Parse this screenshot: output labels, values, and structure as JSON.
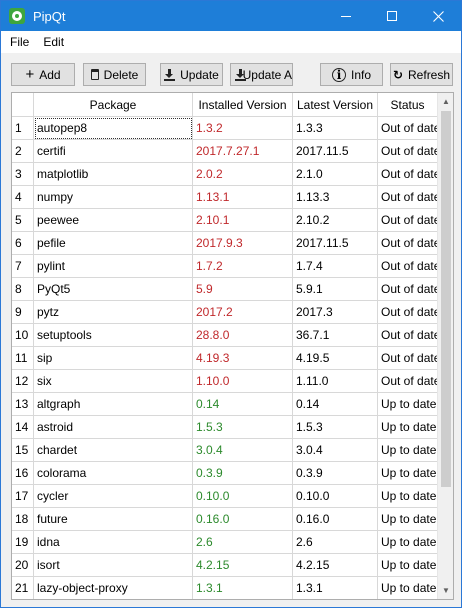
{
  "window": {
    "title": "PipQt"
  },
  "menu": {
    "file": "File",
    "edit": "Edit"
  },
  "toolbar": {
    "add": "Add",
    "delete": "Delete",
    "update": "Update",
    "update_all": "Update A",
    "info": "Info",
    "refresh": "Refresh"
  },
  "colors": {
    "outdated": "#c0282b",
    "uptodate": "#2c8a2c",
    "titlebar": "#1e7ed8"
  },
  "table": {
    "headers": {
      "number": "",
      "package": "Package",
      "installed": "Installed Version",
      "latest": "Latest Version",
      "status": "Status"
    },
    "rows": [
      {
        "n": "1",
        "package": "autopep8",
        "installed": "1.3.2",
        "latest": "1.3.3",
        "status": "Out of date"
      },
      {
        "n": "2",
        "package": "certifi",
        "installed": "2017.7.27.1",
        "latest": "2017.11.5",
        "status": "Out of date"
      },
      {
        "n": "3",
        "package": "matplotlib",
        "installed": "2.0.2",
        "latest": "2.1.0",
        "status": "Out of date"
      },
      {
        "n": "4",
        "package": "numpy",
        "installed": "1.13.1",
        "latest": "1.13.3",
        "status": "Out of date"
      },
      {
        "n": "5",
        "package": "peewee",
        "installed": "2.10.1",
        "latest": "2.10.2",
        "status": "Out of date"
      },
      {
        "n": "6",
        "package": "pefile",
        "installed": "2017.9.3",
        "latest": "2017.11.5",
        "status": "Out of date"
      },
      {
        "n": "7",
        "package": "pylint",
        "installed": "1.7.2",
        "latest": "1.7.4",
        "status": "Out of date"
      },
      {
        "n": "8",
        "package": "PyQt5",
        "installed": "5.9",
        "latest": "5.9.1",
        "status": "Out of date"
      },
      {
        "n": "9",
        "package": "pytz",
        "installed": "2017.2",
        "latest": "2017.3",
        "status": "Out of date"
      },
      {
        "n": "10",
        "package": "setuptools",
        "installed": "28.8.0",
        "latest": "36.7.1",
        "status": "Out of date"
      },
      {
        "n": "11",
        "package": "sip",
        "installed": "4.19.3",
        "latest": "4.19.5",
        "status": "Out of date"
      },
      {
        "n": "12",
        "package": "six",
        "installed": "1.10.0",
        "latest": "1.11.0",
        "status": "Out of date"
      },
      {
        "n": "13",
        "package": "altgraph",
        "installed": "0.14",
        "latest": "0.14",
        "status": "Up to date"
      },
      {
        "n": "14",
        "package": "astroid",
        "installed": "1.5.3",
        "latest": "1.5.3",
        "status": "Up to date"
      },
      {
        "n": "15",
        "package": "chardet",
        "installed": "3.0.4",
        "latest": "3.0.4",
        "status": "Up to date"
      },
      {
        "n": "16",
        "package": "colorama",
        "installed": "0.3.9",
        "latest": "0.3.9",
        "status": "Up to date"
      },
      {
        "n": "17",
        "package": "cycler",
        "installed": "0.10.0",
        "latest": "0.10.0",
        "status": "Up to date"
      },
      {
        "n": "18",
        "package": "future",
        "installed": "0.16.0",
        "latest": "0.16.0",
        "status": "Up to date"
      },
      {
        "n": "19",
        "package": "idna",
        "installed": "2.6",
        "latest": "2.6",
        "status": "Up to date"
      },
      {
        "n": "20",
        "package": "isort",
        "installed": "4.2.15",
        "latest": "4.2.15",
        "status": "Up to date"
      },
      {
        "n": "21",
        "package": "lazy-object-proxy",
        "installed": "1.3.1",
        "latest": "1.3.1",
        "status": "Up to date"
      }
    ]
  },
  "icons": {
    "add": "plus-icon",
    "delete": "trash-icon",
    "update": "download-icon",
    "update_all": "download-icon",
    "info": "info-icon",
    "refresh": "refresh-icon",
    "minimize": "minimize-icon",
    "maximize": "maximize-icon",
    "close": "close-icon"
  }
}
